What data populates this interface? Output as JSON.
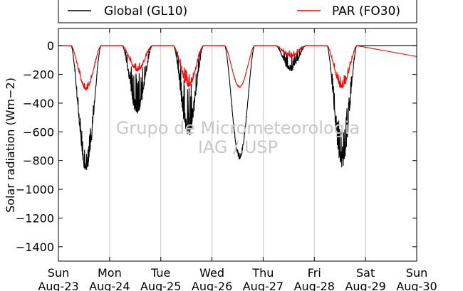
{
  "chart_data": {
    "type": "line",
    "ylabel": "Solar radiation (Wm−2)",
    "ylabel_math": "Wm−2",
    "ylim": [
      -1500,
      120
    ],
    "yticks": [
      0,
      -200,
      -400,
      -600,
      -800,
      -1000,
      -1200,
      -1400
    ],
    "xlim": [
      0,
      7
    ],
    "xticks": [
      {
        "day": "Sun",
        "date": "Aug-23"
      },
      {
        "day": "Mon",
        "date": "Aug-24"
      },
      {
        "day": "Tue",
        "date": "Aug-25"
      },
      {
        "day": "Wed",
        "date": "Aug-26"
      },
      {
        "day": "Thu",
        "date": "Aug-27"
      },
      {
        "day": "Fri",
        "date": "Aug-28"
      },
      {
        "day": "Sat",
        "date": "Aug-29"
      },
      {
        "day": "Sun",
        "date": "Aug-30"
      }
    ],
    "grid": "vertical",
    "legend_position": "top-outside",
    "watermark": [
      "Grupo de Micrometeorologia",
      "IAG / USP"
    ],
    "series": [
      {
        "name": "Global (GL10)",
        "color": "#000000",
        "days": [
          {
            "start": 0.25,
            "peak": -880,
            "noise": 0.22
          },
          {
            "start": 1.25,
            "peak": -480,
            "noise": 0.6
          },
          {
            "start": 2.25,
            "peak": -640,
            "noise": 0.6
          },
          {
            "start": 3.25,
            "peak": -790,
            "noise": 0.05
          },
          {
            "start": 4.25,
            "peak": -180,
            "noise": 0.7
          },
          {
            "start": 5.25,
            "peak": -850,
            "noise": 0.35
          }
        ]
      },
      {
        "name": "PAR (FO30)",
        "color": "#ff0000",
        "days": [
          {
            "start": 0.25,
            "peak": -310,
            "noise": 0.2
          },
          {
            "start": 1.25,
            "peak": -180,
            "noise": 0.35
          },
          {
            "start": 2.25,
            "peak": -290,
            "noise": 0.4
          },
          {
            "start": 3.25,
            "peak": -290,
            "noise": 0.05
          },
          {
            "start": 4.25,
            "peak": -80,
            "noise": 0.6
          },
          {
            "start": 5.25,
            "peak": -300,
            "noise": 0.3
          }
        ],
        "tail": {
          "x": [
            5.83,
            7.0
          ],
          "y": [
            0,
            -75
          ]
        }
      }
    ]
  }
}
